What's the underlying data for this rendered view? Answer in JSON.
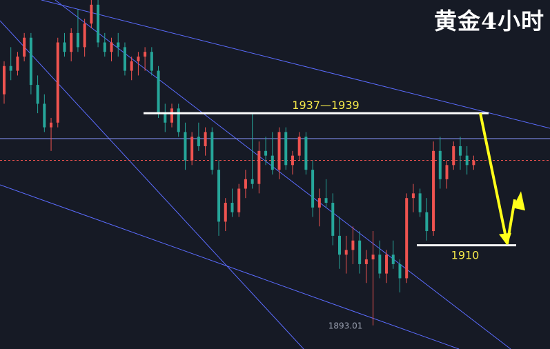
{
  "title": "黄金4小时",
  "colors": {
    "background": "#161a25",
    "up": "#ef5350",
    "down": "#26a69a",
    "trendline": "#5b6cff",
    "level": "#ffffff",
    "label": "#f5e94a",
    "arrow": "#ffff1a",
    "low_label": "#9aa0b0"
  },
  "chart_data": {
    "type": "candlestick",
    "symbol": "黄金",
    "timeframe": "4小时",
    "ylim": [
      1888,
      1962
    ],
    "resistance_zone": {
      "label": "1937—1939",
      "value": 1938
    },
    "support_level": {
      "label": "1910",
      "value": 1910
    },
    "current_price": 1928,
    "low_marker": {
      "label": "1893.01",
      "value": 1893.01
    },
    "forecast_path": [
      1938,
      1910,
      1920
    ],
    "candles": [
      [
        1942,
        1949,
        1940,
        1948
      ],
      [
        1948,
        1952,
        1945,
        1947
      ],
      [
        1947,
        1951,
        1946,
        1950
      ],
      [
        1950,
        1955,
        1949,
        1954
      ],
      [
        1954,
        1955,
        1942,
        1944
      ],
      [
        1944,
        1946,
        1938,
        1940
      ],
      [
        1940,
        1942,
        1934,
        1935
      ],
      [
        1935,
        1937,
        1930,
        1936
      ],
      [
        1936,
        1954,
        1935,
        1953
      ],
      [
        1953,
        1955,
        1950,
        1951
      ],
      [
        1951,
        1956,
        1949,
        1955
      ],
      [
        1955,
        1960,
        1951,
        1952
      ],
      [
        1952,
        1958,
        1950,
        1957
      ],
      [
        1957,
        1962,
        1956,
        1961
      ],
      [
        1961,
        1962,
        1952,
        1953
      ],
      [
        1953,
        1955,
        1950,
        1951
      ],
      [
        1951,
        1954,
        1949,
        1953
      ],
      [
        1953,
        1955,
        1950,
        1952
      ],
      [
        1952,
        1953,
        1946,
        1947
      ],
      [
        1947,
        1950,
        1945,
        1949
      ],
      [
        1949,
        1951,
        1946,
        1950
      ],
      [
        1950,
        1952,
        1947,
        1951
      ],
      [
        1951,
        1952,
        1946,
        1947
      ],
      [
        1947,
        1948,
        1937,
        1938
      ],
      [
        1938,
        1940,
        1934,
        1936
      ],
      [
        1936,
        1940,
        1935,
        1939
      ],
      [
        1939,
        1940,
        1933,
        1934
      ],
      [
        1934,
        1936,
        1926,
        1928
      ],
      [
        1928,
        1934,
        1927,
        1933
      ],
      [
        1933,
        1936,
        1930,
        1931
      ],
      [
        1931,
        1935,
        1929,
        1934
      ],
      [
        1934,
        1935,
        1925,
        1926
      ],
      [
        1926,
        1928,
        1912,
        1915
      ],
      [
        1915,
        1920,
        1913,
        1919
      ],
      [
        1919,
        1922,
        1916,
        1917
      ],
      [
        1917,
        1923,
        1916,
        1922
      ],
      [
        1922,
        1926,
        1920,
        1924
      ],
      [
        1924,
        1938,
        1922,
        1923
      ],
      [
        1923,
        1932,
        1921,
        1930
      ],
      [
        1930,
        1933,
        1927,
        1929
      ],
      [
        1929,
        1934,
        1925,
        1926
      ],
      [
        1926,
        1935,
        1924,
        1934
      ],
      [
        1934,
        1935,
        1926,
        1927
      ],
      [
        1927,
        1930,
        1925,
        1929
      ],
      [
        1929,
        1934,
        1928,
        1933
      ],
      [
        1933,
        1934,
        1925,
        1926
      ],
      [
        1926,
        1928,
        1916,
        1918
      ],
      [
        1918,
        1922,
        1914,
        1920
      ],
      [
        1920,
        1924,
        1918,
        1919
      ],
      [
        1919,
        1921,
        1910,
        1912
      ],
      [
        1912,
        1916,
        1905,
        1908
      ],
      [
        1908,
        1912,
        1904,
        1909
      ],
      [
        1909,
        1914,
        1906,
        1911
      ],
      [
        1911,
        1913,
        1904,
        1906
      ],
      [
        1906,
        1909,
        1902,
        1907
      ],
      [
        1907,
        1913,
        1893,
        1908
      ],
      [
        1908,
        1911,
        1903,
        1904
      ],
      [
        1904,
        1909,
        1902,
        1908
      ],
      [
        1908,
        1911,
        1905,
        1906
      ],
      [
        1906,
        1907,
        1900,
        1903
      ],
      [
        1903,
        1921,
        1902,
        1920
      ],
      [
        1920,
        1923,
        1917,
        1921
      ],
      [
        1921,
        1922,
        1916,
        1917
      ],
      [
        1917,
        1920,
        1911,
        1913
      ],
      [
        1913,
        1932,
        1912,
        1930
      ],
      [
        1930,
        1933,
        1922,
        1924
      ],
      [
        1924,
        1928,
        1922,
        1927
      ],
      [
        1927,
        1932,
        1926,
        1931
      ],
      [
        1931,
        1933,
        1926,
        1929
      ],
      [
        1929,
        1931,
        1925,
        1927
      ],
      [
        1927,
        1929,
        1926,
        1928
      ]
    ]
  }
}
